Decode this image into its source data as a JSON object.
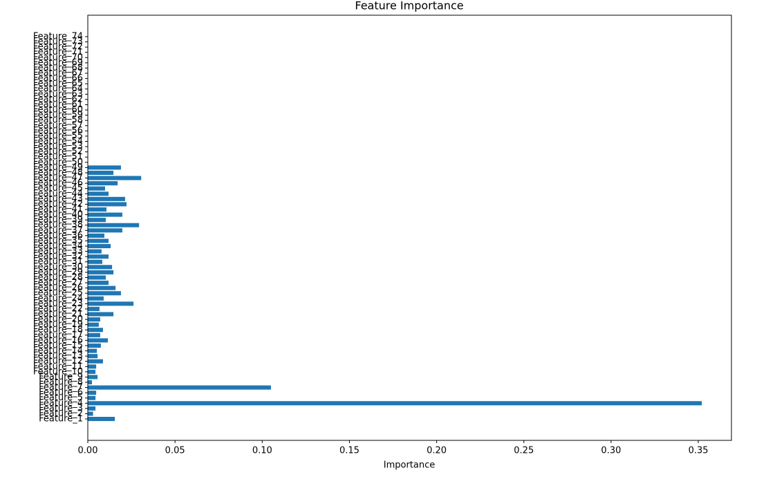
{
  "chart_data": {
    "type": "barh",
    "title": "Feature Importance",
    "x_label": "Importance",
    "categories": [
      "Feature_1",
      "Feature_2",
      "Feature_3",
      "Feature_4",
      "Feature_5",
      "Feature_6",
      "Feature_7",
      "Feature_8",
      "Feature_9",
      "Feature_10",
      "Feature_11",
      "Feature_12",
      "Feature_13",
      "Feature_14",
      "Feature_15",
      "Feature_16",
      "Feature_17",
      "Feature_18",
      "Feature_19",
      "Feature_20",
      "Feature_21",
      "Feature_22",
      "Feature_23",
      "Feature_24",
      "Feature_25",
      "Feature_26",
      "Feature_27",
      "Feature_28",
      "Feature_29",
      "Feature_30",
      "Feature_31",
      "Feature_32",
      "Feature_33",
      "Feature_34",
      "Feature_35",
      "Feature_36",
      "Feature_37",
      "Feature_38",
      "Feature_39",
      "Feature_40",
      "Feature_41",
      "Feature_42",
      "Feature_43",
      "Feature_44",
      "Feature_45",
      "Feature_46",
      "Feature_47",
      "Feature_48",
      "Feature_49",
      "Feature_50",
      "Feature_51",
      "Feature_52",
      "Feature_53",
      "Feature_54",
      "Feature_55",
      "Feature_56",
      "Feature_57",
      "Feature_58",
      "Feature_59",
      "Feature_60",
      "Feature_61",
      "Feature_62",
      "Feature_63",
      "Feature_64",
      "Feature_65",
      "Feature_66",
      "Feature_67",
      "Feature_68",
      "Feature_69",
      "Feature_70",
      "Feature_71",
      "Feature_72",
      "Feature_73",
      "Feature_74"
    ],
    "values": [
      0.0155,
      0.003,
      0.0044,
      0.352,
      0.0044,
      0.0048,
      0.105,
      0.0024,
      0.0056,
      0.0044,
      0.0048,
      0.0087,
      0.0056,
      0.0052,
      0.0075,
      0.0115,
      0.0071,
      0.0087,
      0.0063,
      0.0071,
      0.0147,
      0.0067,
      0.0262,
      0.0091,
      0.019,
      0.0159,
      0.0119,
      0.0103,
      0.0147,
      0.0139,
      0.0083,
      0.0119,
      0.0079,
      0.0131,
      0.0119,
      0.0095,
      0.0198,
      0.0294,
      0.0103,
      0.0198,
      0.0107,
      0.0222,
      0.0214,
      0.0119,
      0.0099,
      0.0171,
      0.0306,
      0.0147,
      0.019,
      0,
      0,
      0,
      0,
      0,
      0,
      0,
      0,
      0,
      0,
      0,
      0,
      0,
      0,
      0,
      0,
      0,
      0,
      0,
      0,
      0,
      0,
      0,
      0,
      0
    ],
    "color": "#1f77b4",
    "xlim": [
      0,
      0.369
    ],
    "xticks": [
      {
        "value": 0,
        "label": "0.00"
      },
      0.05,
      {
        "value": 0.1,
        "label": "0.10"
      },
      0.15,
      {
        "value": 0.2,
        "label": "0.20"
      },
      0.25,
      {
        "value": 0.3,
        "label": "0.30"
      },
      0.35
    ],
    "grid": false
  }
}
